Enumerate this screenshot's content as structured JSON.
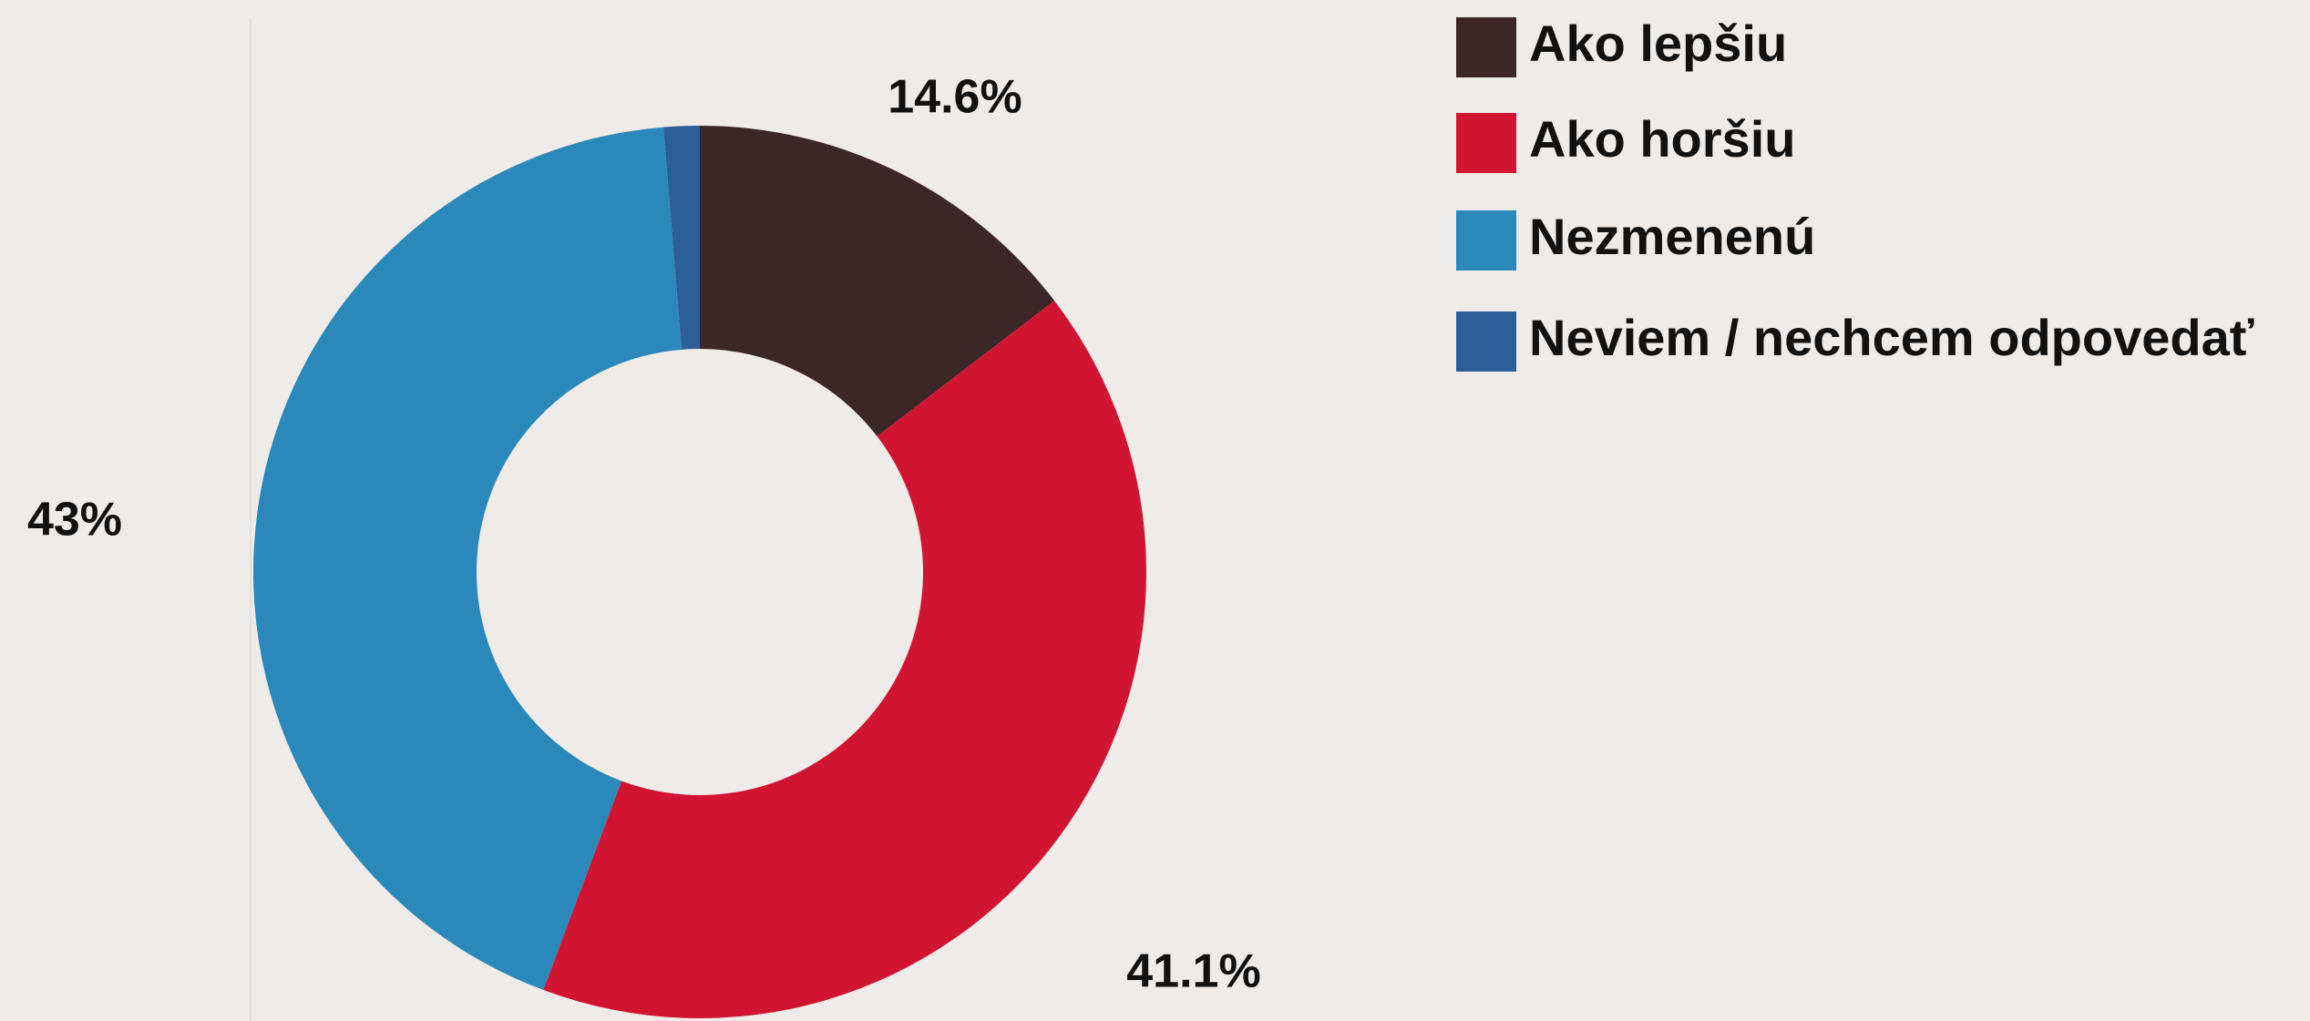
{
  "chart_data": {
    "type": "donut",
    "categories": [
      "Ako lepšiu",
      "Ako horšiu",
      "Nezmenenú",
      "Neviem / nechcem odpovedať"
    ],
    "values": [
      14.6,
      41.1,
      43,
      1.3
    ],
    "value_labels": [
      "14.6%",
      "41.1%",
      "43%",
      null
    ],
    "colors": [
      "#3b2628",
      "#d01431",
      "#2a88ba",
      "#2c5e98"
    ],
    "legend": "top-right"
  }
}
